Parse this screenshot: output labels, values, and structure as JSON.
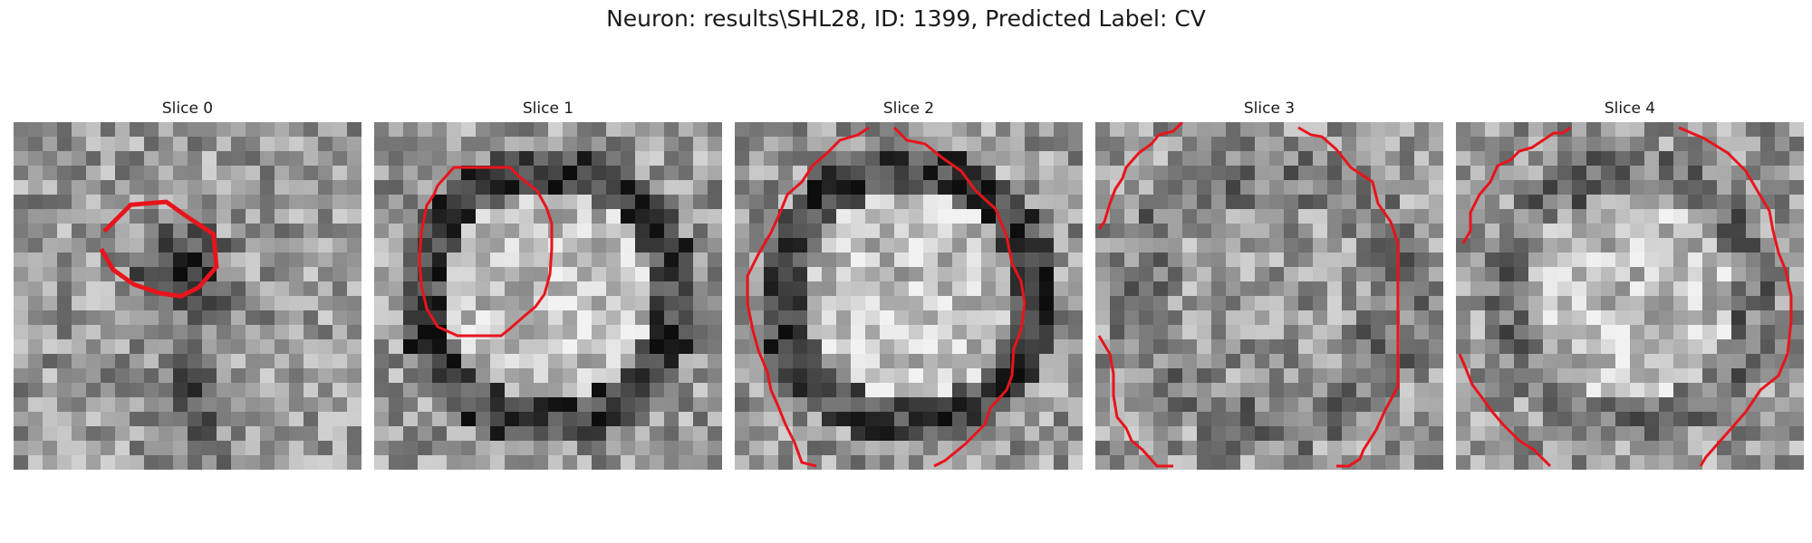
{
  "figure": {
    "title": "Neuron: results\\SHL28, ID: 1399, Predicted Label: CV"
  },
  "slices": [
    {
      "label": "Slice 0",
      "seed": 11,
      "bg": "speckle",
      "blob": "dark-center"
    },
    {
      "label": "Slice 1",
      "seed": 27,
      "bg": "ring",
      "blob": "bright-center"
    },
    {
      "label": "Slice 2",
      "seed": 43,
      "bg": "ring",
      "blob": "bright-center"
    },
    {
      "label": "Slice 3",
      "seed": 61,
      "bg": "noisy",
      "blob": "mixed"
    },
    {
      "label": "Slice 4",
      "seed": 79,
      "bg": "ring-soft",
      "blob": "bright-center"
    }
  ],
  "contour_color": "#e8141c"
}
